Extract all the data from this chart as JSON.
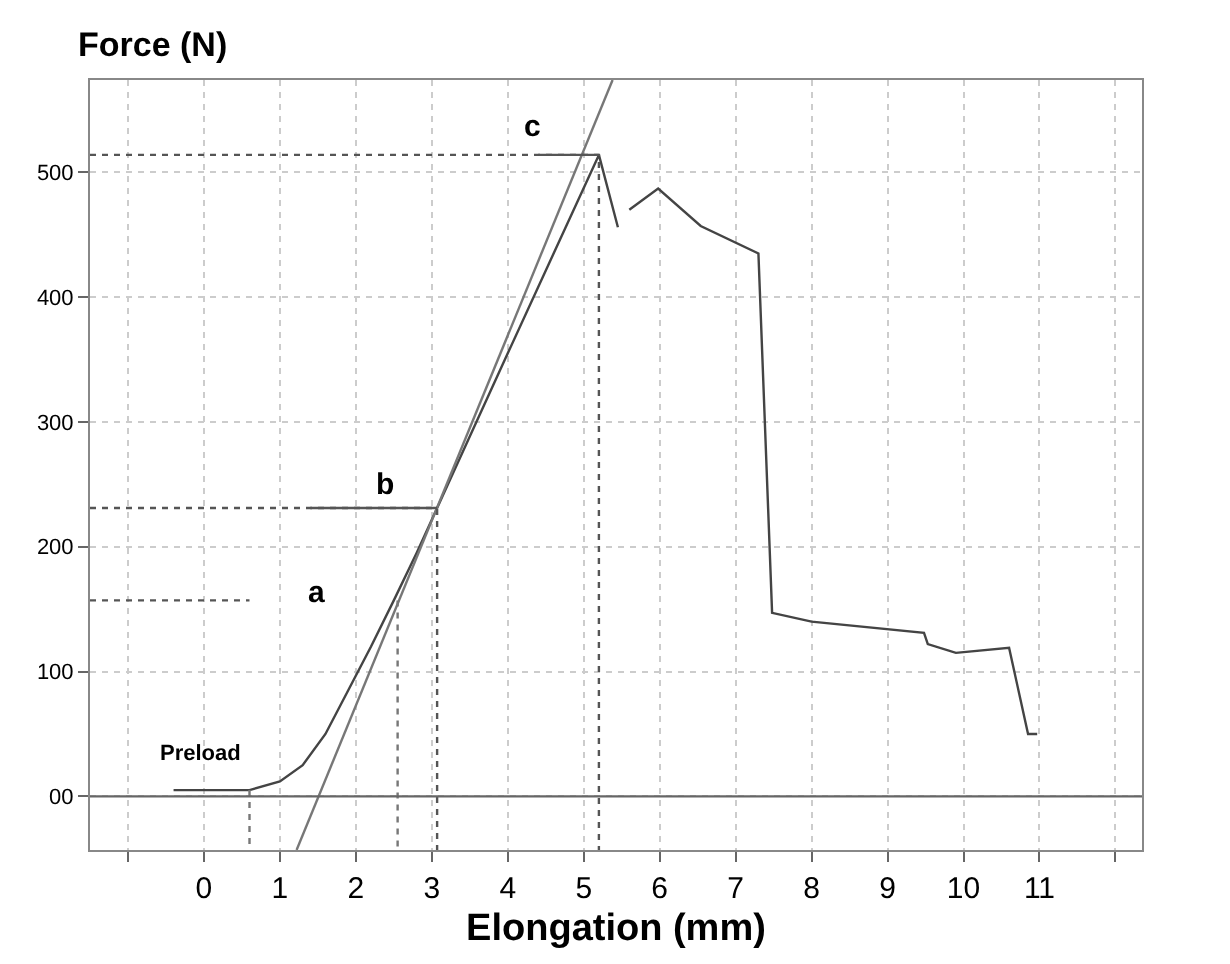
{
  "chart_data": {
    "type": "line",
    "ylabel": "Force (N)",
    "xlabel": "Elongation (mm)",
    "xlim": [
      -1.5,
      12.35
    ],
    "ylim": [
      -43,
      574
    ],
    "xticks": [
      {
        "value": -1,
        "label": null
      },
      0,
      1,
      2,
      3,
      4,
      5,
      6,
      7,
      8,
      9,
      10,
      11,
      {
        "value": 12,
        "label": null
      }
    ],
    "yticks": [
      {
        "value": 0,
        "label": "00"
      },
      100,
      200,
      300,
      400,
      500
    ],
    "grid": true,
    "marker": "none",
    "series": [
      {
        "color": "#444444",
        "line_style": "solid",
        "x": [
          -0.4,
          0.6,
          1.0,
          1.3,
          1.6,
          1.9,
          2.2,
          2.5,
          2.8,
          3.07,
          4.0,
          5.2,
          5.45
        ],
        "values": [
          5,
          5,
          12,
          25,
          50,
          85,
          120,
          157,
          195,
          231,
          355,
          514,
          456
        ]
      },
      {
        "color": "#444444",
        "line_style": "solid",
        "x": [
          5.6,
          5.98,
          6.54,
          7.3,
          7.48,
          8.0,
          9.48,
          9.53,
          9.9,
          10.6,
          10.85,
          10.97
        ],
        "values": [
          470,
          487,
          457,
          435,
          147,
          140,
          131,
          122,
          115,
          119,
          50,
          50
        ]
      },
      {
        "color": "#777777",
        "line_style": "solid",
        "x": [
          1.22,
          5.38
        ],
        "values": [
          -43,
          574
        ]
      },
      {
        "color": "#555555",
        "line_style": "dotted",
        "x": [
          -1.5,
          1.4,
          3.07,
          3.07
        ],
        "values": [
          231,
          231,
          231,
          -43
        ]
      },
      {
        "color": "#555555",
        "line_style": "dotted",
        "x": [
          -1.5,
          4.4,
          5.2,
          5.2
        ],
        "values": [
          514,
          514,
          514,
          -43
        ]
      },
      {
        "color": "#555555",
        "line_style": "dotted",
        "x": [
          -1.5,
          0.6
        ],
        "values": [
          157,
          157
        ]
      },
      {
        "color": "#777777",
        "line_style": "dotted",
        "x": [
          2.55,
          2.55
        ],
        "values": [
          157,
          -43
        ]
      },
      {
        "color": "#777777",
        "line_style": "dotted",
        "x": [
          0.6,
          0.6
        ],
        "values": [
          5,
          -43
        ]
      },
      {
        "color": "#555555",
        "line_style": "solid",
        "x": [
          1.4,
          3.07
        ],
        "values": [
          231,
          231
        ]
      },
      {
        "color": "#555555",
        "line_style": "solid",
        "x": [
          4.4,
          5.2
        ],
        "values": [
          514,
          514
        ]
      }
    ],
    "ref_lines": [
      {
        "axis": "y",
        "value": 0,
        "color": "#666666",
        "line_style": "solid"
      }
    ],
    "annotations": [
      "a",
      "b",
      "c",
      "Preload"
    ]
  }
}
